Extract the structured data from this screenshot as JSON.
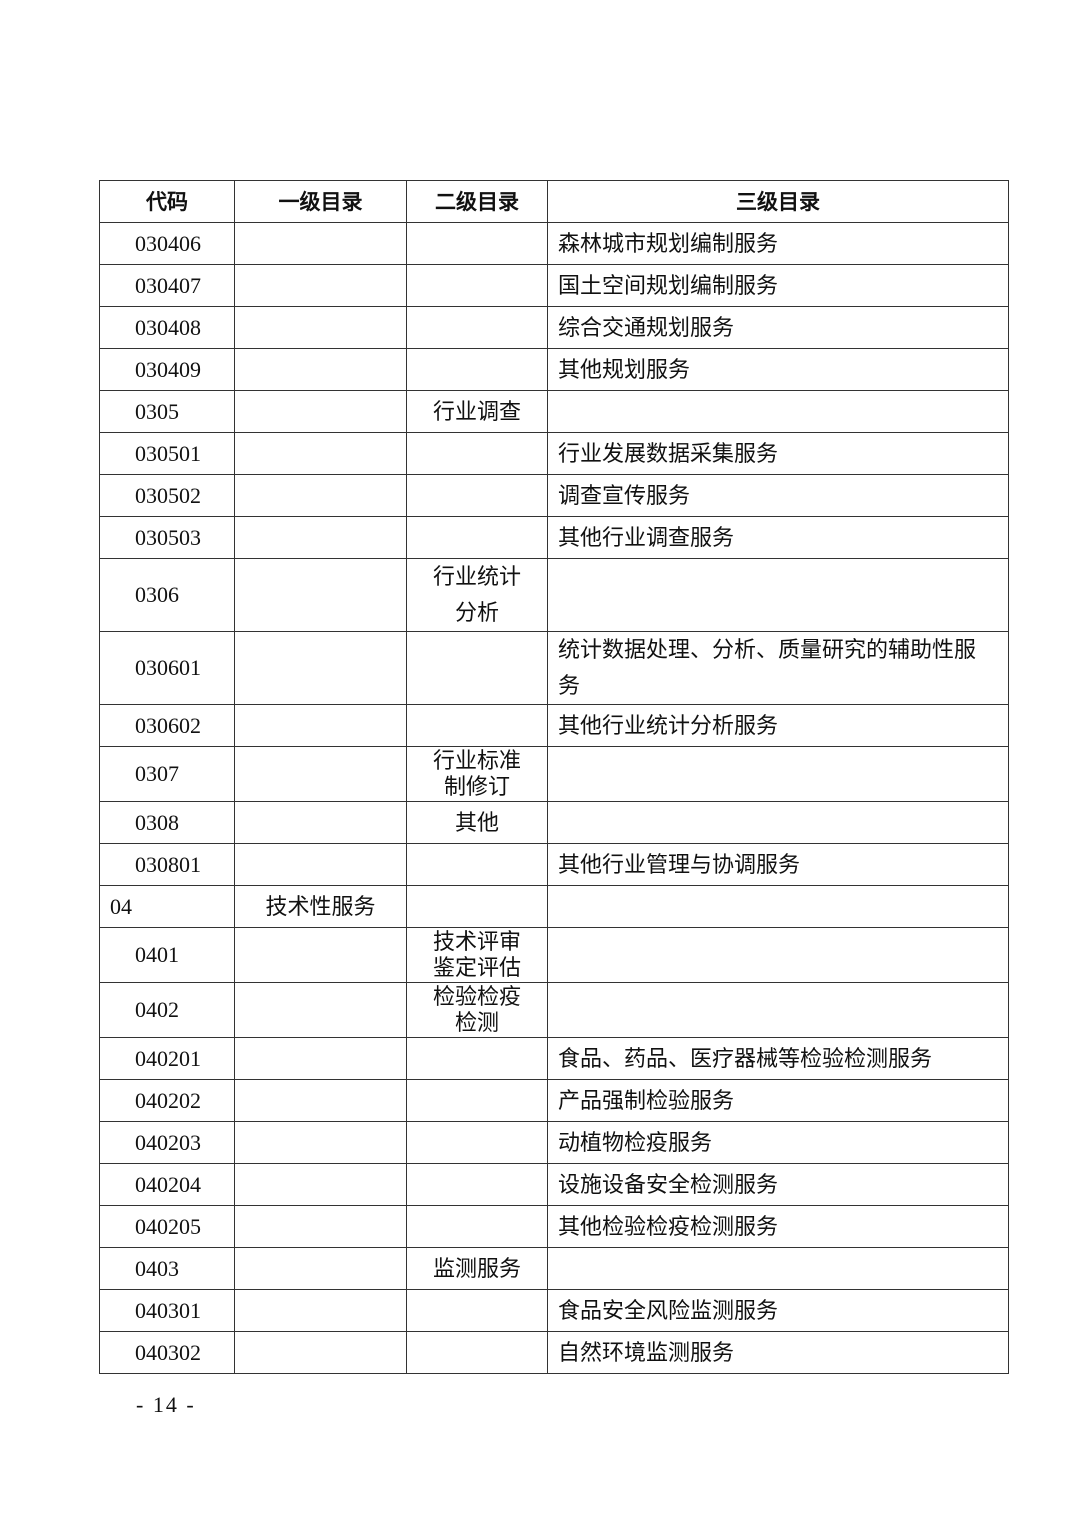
{
  "table": {
    "headers": [
      "代码",
      "一级目录",
      "二级目录",
      "三级目录"
    ],
    "rows": [
      {
        "code": "030406",
        "l1": "",
        "l2": "",
        "l3": "森林城市规划编制服务"
      },
      {
        "code": "030407",
        "l1": "",
        "l2": "",
        "l3": "国土空间规划编制服务"
      },
      {
        "code": "030408",
        "l1": "",
        "l2": "",
        "l3": "综合交通规划服务"
      },
      {
        "code": "030409",
        "l1": "",
        "l2": "",
        "l3": "其他规划服务"
      },
      {
        "code": "0305",
        "l1": "",
        "l2": "行业调查",
        "l3": ""
      },
      {
        "code": "030501",
        "l1": "",
        "l2": "",
        "l3": "行业发展数据采集服务"
      },
      {
        "code": "030502",
        "l1": "",
        "l2": "",
        "l3": "调查宣传服务"
      },
      {
        "code": "030503",
        "l1": "",
        "l2": "",
        "l3": "其他行业调查服务"
      },
      {
        "code": "0306",
        "l1": "",
        "l2": "行业统计分析",
        "l3": ""
      },
      {
        "code": "030601",
        "l1": "",
        "l2": "",
        "l3": "统计数据处理、分析、质量研究的辅助性服务"
      },
      {
        "code": "030602",
        "l1": "",
        "l2": "",
        "l3": "其他行业统计分析服务"
      },
      {
        "code": "0307",
        "l1": "",
        "l2": "行业标准制修订",
        "l3": ""
      },
      {
        "code": "0308",
        "l1": "",
        "l2": "其他",
        "l3": ""
      },
      {
        "code": "030801",
        "l1": "",
        "l2": "",
        "l3": "其他行业管理与协调服务"
      },
      {
        "code": "04",
        "l1": "技术性服务",
        "l2": "",
        "l3": ""
      },
      {
        "code": "0401",
        "l1": "",
        "l2": "技术评审鉴定评估",
        "l3": ""
      },
      {
        "code": "0402",
        "l1": "",
        "l2": "检验检疫检测",
        "l3": ""
      },
      {
        "code": "040201",
        "l1": "",
        "l2": "",
        "l3": "食品、药品、医疗器械等检验检测服务"
      },
      {
        "code": "040202",
        "l1": "",
        "l2": "",
        "l3": "产品强制检验服务"
      },
      {
        "code": "040203",
        "l1": "",
        "l2": "",
        "l3": "动植物检疫服务"
      },
      {
        "code": "040204",
        "l1": "",
        "l2": "",
        "l3": "设施设备安全检测服务"
      },
      {
        "code": "040205",
        "l1": "",
        "l2": "",
        "l3": "其他检验检疫检测服务"
      },
      {
        "code": "0403",
        "l1": "",
        "l2": "监测服务",
        "l3": ""
      },
      {
        "code": "040301",
        "l1": "",
        "l2": "",
        "l3": "食品安全风险监测服务"
      },
      {
        "code": "040302",
        "l1": "",
        "l2": "",
        "l3": "自然环境监测服务"
      }
    ]
  },
  "footer": {
    "page_number": "- 14 -"
  }
}
